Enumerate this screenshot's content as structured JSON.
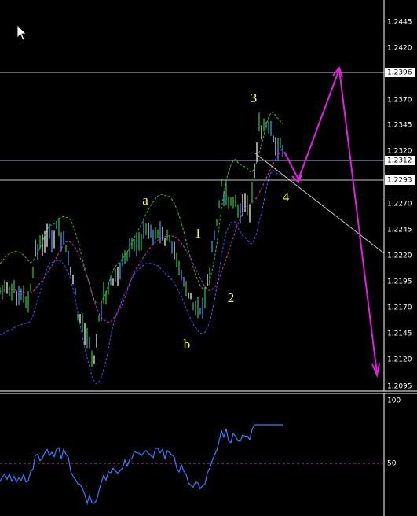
{
  "price_axis": {
    "ticks": [
      "1.2445",
      "1.2420",
      "1.2370",
      "1.2345",
      "1.2320",
      "1.2270",
      "1.2245",
      "1.2220",
      "1.2195",
      "1.2170",
      "1.2145",
      "1.2120",
      "1.2095"
    ]
  },
  "levels": [
    "1.2396",
    "1.2312",
    "1.2293"
  ],
  "wave_labels": [
    "3",
    "4",
    "a",
    "1",
    "2",
    "b"
  ],
  "indicator_axis": {
    "ticks": [
      "100",
      "50"
    ]
  }
}
